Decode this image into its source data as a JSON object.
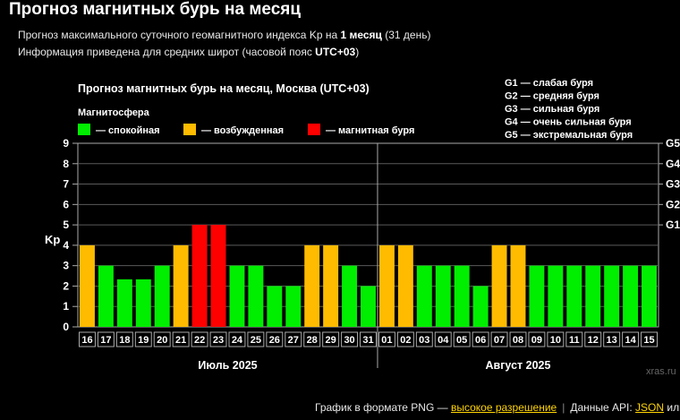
{
  "page": {
    "title": "Прогноз магнитных бурь на месяц",
    "line1_prefix": "Прогноз максимального суточного геомагнитного индекса Kp на ",
    "line1_bold": "1 месяц",
    "line1_suffix": " (31 день)",
    "line2_prefix": "Информация приведена для средних широт (часовой пояс ",
    "line2_bold": "UTC+03",
    "line2_suffix": ")"
  },
  "footer": {
    "png_prefix": "График в формате PNG — ",
    "png_link": "высокое разрешение",
    "api_prefix": "Данные API: ",
    "api_link": "JSON",
    "api_suffix": " или"
  },
  "chart_data": {
    "type": "bar",
    "title": "Прогноз магнитных бурь на месяц, Москва (UTC+03)",
    "ylabel": "Kp",
    "ylim": [
      0,
      9
    ],
    "yticks": [
      0,
      1,
      2,
      3,
      4,
      5,
      6,
      7,
      8,
      9
    ],
    "legend_title": "Магнитосфера",
    "legend": [
      {
        "label": "— спокойная",
        "color": "#00ee00"
      },
      {
        "label": "— возбужденная",
        "color": "#ffbb00"
      },
      {
        "label": "— магнитная буря",
        "color": "#ff0000"
      }
    ],
    "storm_scale": [
      "G1 — слабая буря",
      "G2 — средняя буря",
      "G3 — сильная буря",
      "G4 — очень сильная буря",
      "G5 — экстремальная буря"
    ],
    "right_axis": [
      {
        "label": "G1",
        "y": 5
      },
      {
        "label": "G2",
        "y": 6
      },
      {
        "label": "G3",
        "y": 7
      },
      {
        "label": "G4",
        "y": 8
      },
      {
        "label": "G5",
        "y": 9
      }
    ],
    "categories": [
      "16",
      "17",
      "18",
      "19",
      "20",
      "21",
      "22",
      "23",
      "24",
      "25",
      "26",
      "27",
      "28",
      "29",
      "30",
      "31",
      "01",
      "02",
      "03",
      "04",
      "05",
      "06",
      "07",
      "08",
      "09",
      "10",
      "11",
      "12",
      "13",
      "14",
      "15"
    ],
    "values": [
      4,
      3,
      2.33,
      2.33,
      3,
      4,
      5,
      5,
      3,
      3,
      2,
      2,
      4,
      4,
      3,
      2,
      4,
      4,
      3,
      3,
      3,
      2,
      4,
      4,
      3,
      3,
      3,
      3,
      3,
      3,
      3
    ],
    "month_labels": [
      "Июль 2025",
      "Август 2025"
    ],
    "watermark": "xras.ru",
    "grid": true
  }
}
